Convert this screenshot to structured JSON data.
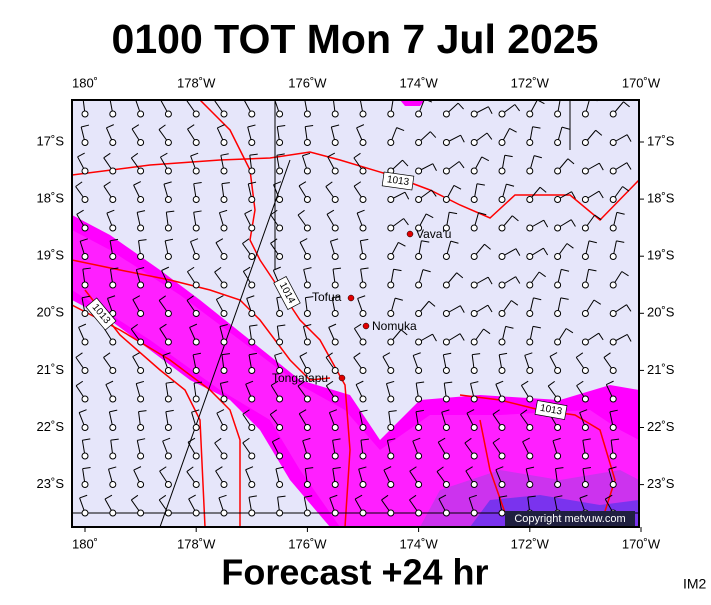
{
  "title": "0100 TOT Mon 7 Jul 2025",
  "subtitle": "Forecast +24 hr",
  "image_id": "IM2",
  "copyright": "Copyright metvuw.com",
  "lon_ticks": [
    {
      "value": 180,
      "label": "180˚"
    },
    {
      "value": 178,
      "label": "178˚W"
    },
    {
      "value": 176,
      "label": "176˚W"
    },
    {
      "value": 174,
      "label": "174˚W"
    },
    {
      "value": 172,
      "label": "172˚W"
    },
    {
      "value": 170,
      "label": "170˚W"
    }
  ],
  "lat_ticks": [
    {
      "value": 17,
      "label": "17˚S"
    },
    {
      "value": 18,
      "label": "18˚S"
    },
    {
      "value": 19,
      "label": "19˚S"
    },
    {
      "value": 20,
      "label": "20˚S"
    },
    {
      "value": 21,
      "label": "21˚S"
    },
    {
      "value": 22,
      "label": "22˚S"
    },
    {
      "value": 23,
      "label": "23˚S"
    }
  ],
  "places": [
    "Vava'u",
    "Tofua",
    "Nomuka",
    "Tongatapu"
  ],
  "isobar_labels": [
    "1013",
    "1014",
    "1013",
    "1013"
  ]
}
